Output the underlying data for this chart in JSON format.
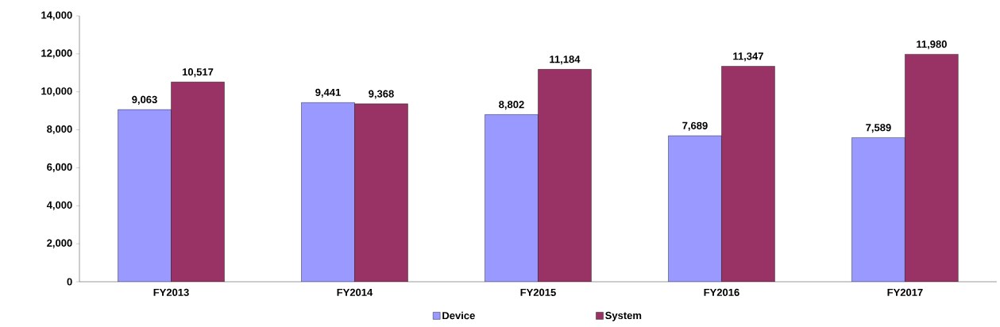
{
  "chart_data": {
    "type": "bar",
    "categories": [
      "FY2013",
      "FY2014",
      "FY2015",
      "FY2016",
      "FY2017"
    ],
    "series": [
      {
        "name": "Device",
        "color": "#9999ff",
        "values": [
          9063,
          9441,
          8802,
          7689,
          7589
        ],
        "value_labels": [
          "9,063",
          "9,441",
          "8,802",
          "7,689",
          "7,589"
        ]
      },
      {
        "name": "System",
        "color": "#993366",
        "values": [
          10517,
          9368,
          11184,
          11347,
          11980
        ],
        "value_labels": [
          "10,517",
          "9,368",
          "11,184",
          "11,347",
          "11,980"
        ]
      }
    ],
    "ylim": [
      0,
      14000
    ],
    "yticks": [
      0,
      {
        "value": 2000,
        "label": "2,000"
      },
      {
        "value": 4000,
        "label": "4,000"
      },
      {
        "value": 6000,
        "label": "6,000"
      },
      {
        "value": 8000,
        "label": "8,000"
      },
      {
        "value": 10000,
        "label": "10,000"
      },
      {
        "value": 12000,
        "label": "12,000"
      },
      {
        "value": 14000,
        "label": "14,000"
      }
    ],
    "grid": false,
    "legend": "bottom"
  }
}
